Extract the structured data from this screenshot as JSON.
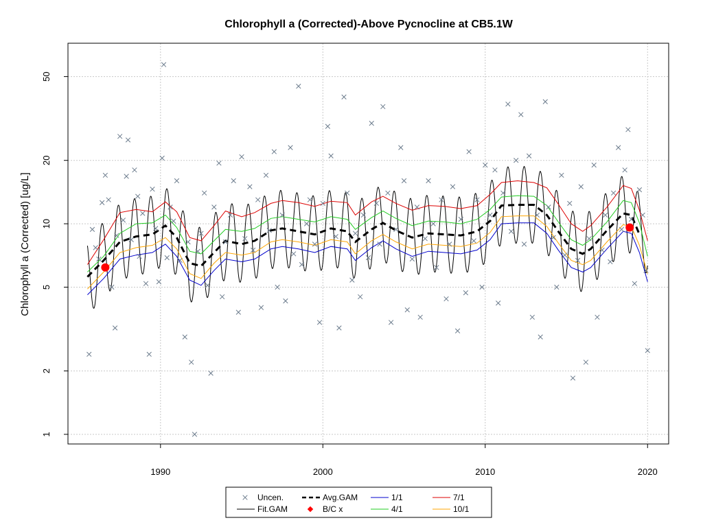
{
  "chart_data": {
    "type": "scatter",
    "title": "Chlorophyll a (Corrected)-Above Pycnocline at CB5.1W",
    "xlabel": "",
    "ylabel": "Chlorophyll a (Corrected) [ug/L]",
    "x_scale": "linear",
    "y_scale": "log",
    "xlim": [
      1984.3,
      2021.3
    ],
    "ylim": [
      0.9,
      72
    ],
    "x_ticks": [
      1990,
      2000,
      2010,
      2020
    ],
    "y_ticks": [
      1,
      2,
      5,
      10,
      20,
      50
    ],
    "x_tick_labels": [
      "1990",
      "2000",
      "2010",
      "2020"
    ],
    "y_tick_labels": [
      "1",
      "2",
      "5",
      "10",
      "20",
      "50"
    ],
    "grid": true,
    "legend_position": "bottom-center",
    "legend": [
      {
        "label": "Uncen.",
        "kind": "marker-x",
        "color": "#6b7b8c"
      },
      {
        "label": "Avg.GAM",
        "kind": "dashed-line",
        "color": "#000000"
      },
      {
        "label": "1/1",
        "kind": "line",
        "color": "#0000cc"
      },
      {
        "label": "7/1",
        "kind": "line",
        "color": "#dd0000"
      },
      {
        "label": "Fit.GAM",
        "kind": "line",
        "color": "#000000"
      },
      {
        "label": "B/C x",
        "kind": "marker-dot",
        "color": "#ff0000"
      },
      {
        "label": "4/1",
        "kind": "line",
        "color": "#22cc22"
      },
      {
        "label": "10/1",
        "kind": "line",
        "color": "#ffa500"
      }
    ],
    "series": [
      {
        "name": "Avg.GAM",
        "x": [
          1985.5,
          1986.5,
          1987.5,
          1988.5,
          1989.5,
          1990.3,
          1991,
          1991.8,
          1992.5,
          1993.3,
          1994,
          1995,
          1995.8,
          1996.8,
          1997.5,
          1998.5,
          1999.5,
          2000.5,
          2001.5,
          2002,
          2003,
          2003.7,
          2004.5,
          2005.5,
          2006.5,
          2007.5,
          2008.5,
          2009.5,
          2010.3,
          2011,
          2012,
          2013,
          2013.8,
          2014.5,
          2015.3,
          2016,
          2016.5,
          2017.5,
          2018.5,
          2019,
          2019.5
        ],
        "y": [
          5.6,
          6.7,
          8.2,
          8.7,
          8.9,
          9.8,
          8.6,
          6.5,
          6.3,
          7.3,
          8.3,
          8.0,
          8.3,
          9.3,
          9.5,
          9.2,
          8.9,
          9.5,
          9.2,
          8.2,
          9.4,
          10.1,
          9.3,
          8.6,
          9.0,
          8.9,
          8.8,
          9.2,
          10.3,
          12.2,
          12.3,
          12.3,
          11.0,
          9.2,
          7.6,
          7.2,
          7.6,
          9.3,
          11.2,
          11.0,
          8.9
        ]
      },
      {
        "name": "1/1",
        "x": [
          1985.5,
          1986.5,
          1987.5,
          1988.5,
          1989.5,
          1990.3,
          1991,
          1991.8,
          1992.5,
          1993.3,
          1994,
          1995,
          1995.8,
          1996.8,
          1997.5,
          1998.5,
          1999.5,
          2000.5,
          2001.5,
          2002,
          2003,
          2003.7,
          2004.5,
          2005.5,
          2006.5,
          2007.5,
          2008.5,
          2009.5,
          2010.3,
          2011,
          2012,
          2013,
          2013.8,
          2014.5,
          2015.3,
          2016,
          2016.5,
          2017.5,
          2018.5,
          2019,
          2019.5,
          2020
        ],
        "y": [
          4.6,
          5.5,
          6.8,
          7.1,
          7.3,
          8.0,
          7.0,
          5.4,
          5.1,
          6.0,
          6.8,
          6.6,
          6.8,
          7.6,
          7.8,
          7.6,
          7.3,
          7.8,
          7.6,
          6.7,
          7.7,
          8.3,
          7.6,
          7.0,
          7.4,
          7.3,
          7.2,
          7.5,
          8.4,
          10.0,
          10.1,
          10.1,
          9.0,
          7.5,
          6.2,
          5.9,
          6.2,
          7.6,
          9.2,
          9.0,
          7.3,
          5.3
        ]
      },
      {
        "name": "4/1",
        "x": [
          1985.5,
          1986.5,
          1987.5,
          1988.5,
          1989.5,
          1990.3,
          1991,
          1991.8,
          1992.5,
          1993.3,
          1994,
          1995,
          1995.8,
          1996.8,
          1997.5,
          1998.5,
          1999.5,
          2000.5,
          2001.5,
          2002,
          2003,
          2003.7,
          2004.5,
          2005.5,
          2006.5,
          2007.5,
          2008.5,
          2009.5,
          2010.3,
          2011,
          2012,
          2013,
          2013.8,
          2014.5,
          2015.3,
          2016,
          2016.5,
          2017.5,
          2018.5,
          2019,
          2019.5,
          2020
        ],
        "y": [
          5.9,
          7.0,
          9.0,
          10.0,
          10.1,
          11.0,
          9.6,
          7.4,
          7.2,
          8.3,
          9.4,
          9.2,
          9.5,
          10.6,
          10.8,
          10.5,
          10.2,
          10.8,
          10.5,
          9.4,
          10.7,
          11.5,
          10.6,
          9.8,
          10.3,
          10.2,
          10.0,
          10.5,
          11.7,
          13.4,
          13.6,
          13.5,
          12.2,
          10.2,
          8.4,
          7.9,
          8.4,
          10.2,
          12.9,
          12.6,
          10.1,
          7.0
        ]
      },
      {
        "name": "7/1",
        "x": [
          1985.5,
          1986.5,
          1987.5,
          1988.5,
          1989.5,
          1990.3,
          1991,
          1991.8,
          1992.5,
          1993.3,
          1994,
          1995,
          1995.8,
          1996.8,
          1997.5,
          1998.5,
          1999.5,
          2000.5,
          2001.5,
          2002,
          2003,
          2003.7,
          2004.5,
          2005.5,
          2006.5,
          2007.5,
          2008.5,
          2009.5,
          2010.3,
          2011,
          2012,
          2013,
          2013.8,
          2014.5,
          2015.3,
          2016,
          2016.5,
          2017.5,
          2018.5,
          2019,
          2019.5,
          2020
        ],
        "y": [
          6.4,
          8.4,
          11.3,
          11.7,
          11.4,
          12.7,
          11.4,
          8.6,
          8.3,
          9.8,
          11.5,
          10.8,
          11.3,
          12.5,
          12.9,
          12.6,
          12.1,
          12.8,
          12.6,
          11.0,
          12.7,
          13.5,
          12.5,
          11.6,
          12.2,
          12.1,
          11.8,
          12.2,
          13.8,
          15.7,
          16.0,
          15.7,
          14.8,
          12.4,
          10.0,
          9.2,
          9.8,
          12.0,
          15.2,
          14.7,
          11.6,
          8.3
        ]
      },
      {
        "name": "10/1",
        "x": [
          1985.5,
          1986.5,
          1987.5,
          1988.5,
          1989.5,
          1990.3,
          1991,
          1991.8,
          1992.5,
          1993.3,
          1994,
          1995,
          1995.8,
          1996.8,
          1997.5,
          1998.5,
          1999.5,
          2000.5,
          2001.5,
          2002,
          2003,
          2003.7,
          2004.5,
          2005.5,
          2006.5,
          2007.5,
          2008.5,
          2009.5,
          2010.3,
          2011,
          2012,
          2013,
          2013.8,
          2014.5,
          2015.3,
          2016,
          2016.5,
          2017.5,
          2018.5,
          2019,
          2019.5,
          2020
        ],
        "y": [
          4.9,
          5.9,
          7.3,
          7.7,
          7.9,
          8.6,
          7.6,
          5.8,
          5.5,
          6.5,
          7.3,
          7.1,
          7.3,
          8.2,
          8.4,
          8.2,
          7.9,
          8.4,
          8.2,
          7.2,
          8.3,
          8.9,
          8.2,
          7.6,
          8.0,
          7.9,
          7.8,
          8.1,
          9.1,
          10.8,
          10.9,
          10.9,
          9.7,
          8.1,
          6.7,
          6.4,
          6.7,
          8.2,
          9.9,
          9.7,
          7.9,
          5.8
        ]
      },
      {
        "name": "Fit.GAM",
        "seasonal_amplitude": 0.42,
        "period_years": 1,
        "follows": "Avg.GAM",
        "x": [
          1985.5,
          1990,
          1995,
          2000,
          2005,
          2010,
          2015,
          2020
        ]
      },
      {
        "name": "B/C x",
        "x": [
          1986.6,
          2018.9
        ],
        "y": [
          6.2,
          9.6
        ]
      },
      {
        "name": "Uncen.",
        "x": [
          1985.6,
          1985.8,
          1986.0,
          1986.2,
          1986.4,
          1986.6,
          1986.8,
          1987.0,
          1987.2,
          1987.3,
          1987.5,
          1987.7,
          1987.9,
          1988.0,
          1988.2,
          1988.4,
          1988.6,
          1988.7,
          1988.9,
          1989.1,
          1989.3,
          1989.5,
          1989.7,
          1989.9,
          1990.1,
          1990.2,
          1990.4,
          1990.6,
          1990.8,
          1991.0,
          1991.2,
          1991.5,
          1991.7,
          1991.9,
          1992.1,
          1992.3,
          1992.5,
          1992.7,
          1992.9,
          1993.1,
          1993.3,
          1993.6,
          1993.8,
          1994.0,
          1994.3,
          1994.5,
          1994.8,
          1995.0,
          1995.2,
          1995.5,
          1995.7,
          1996.0,
          1996.2,
          1996.5,
          1996.7,
          1997.0,
          1997.2,
          1997.5,
          1997.7,
          1998.0,
          1998.2,
          1998.5,
          1998.7,
          1999.0,
          1999.2,
          1999.5,
          1999.8,
          2000.0,
          2000.3,
          2000.5,
          2000.8,
          2001.0,
          2001.3,
          2001.5,
          2001.8,
          2002.0,
          2002.3,
          2002.5,
          2002.8,
          2003.0,
          2003.3,
          2003.5,
          2003.7,
          2004.0,
          2004.2,
          2004.5,
          2004.8,
          2005.0,
          2005.2,
          2005.5,
          2005.8,
          2006.0,
          2006.3,
          2006.5,
          2006.8,
          2007.0,
          2007.3,
          2007.6,
          2007.8,
          2008.0,
          2008.3,
          2008.5,
          2008.8,
          2009.0,
          2009.3,
          2009.5,
          2009.8,
          2010.0,
          2010.3,
          2010.6,
          2010.8,
          2011.1,
          2011.4,
          2011.6,
          2011.9,
          2012.2,
          2012.4,
          2012.7,
          2012.9,
          2013.2,
          2013.4,
          2013.7,
          2013.9,
          2014.2,
          2014.4,
          2014.7,
          2014.9,
          2015.2,
          2015.4,
          2015.7,
          2015.9,
          2016.2,
          2016.4,
          2016.7,
          2016.9,
          2017.2,
          2017.4,
          2017.7,
          2017.9,
          2018.2,
          2018.4,
          2018.6,
          2018.8,
          2019.0,
          2019.2,
          2019.5,
          2019.7,
          2019.9,
          2020.0
        ],
        "y": [
          2.4,
          9.4,
          7.7,
          6.8,
          12.6,
          17.0,
          13.0,
          5.0,
          3.2,
          8.8,
          26.0,
          10.4,
          16.8,
          25.0,
          8.4,
          18.0,
          13.5,
          7.0,
          11.2,
          5.2,
          2.4,
          14.6,
          9.5,
          5.3,
          20.5,
          57.0,
          6.9,
          12.0,
          10.3,
          16.0,
          6.7,
          2.9,
          8.2,
          2.2,
          1.0,
          7.4,
          9.0,
          14.0,
          5.1,
          1.95,
          12.0,
          19.4,
          4.5,
          8.2,
          11.0,
          16.0,
          3.8,
          20.8,
          8.5,
          15.0,
          7.5,
          13.0,
          4.0,
          17.0,
          9.3,
          22.0,
          5.0,
          11.0,
          4.3,
          23.0,
          7.2,
          45.0,
          6.4,
          10.0,
          13.0,
          8.0,
          3.4,
          12.5,
          29.0,
          21.0,
          8.7,
          3.2,
          40.0,
          14.0,
          5.4,
          9.0,
          4.5,
          11.0,
          6.9,
          30.0,
          12.5,
          8.0,
          36.0,
          14.0,
          3.4,
          9.4,
          23.0,
          16.0,
          3.9,
          6.8,
          12.0,
          3.6,
          8.5,
          16.0,
          10.0,
          6.2,
          13.0,
          4.4,
          8.0,
          15.0,
          3.1,
          10.5,
          4.7,
          22.0,
          8.3,
          13.0,
          5.0,
          19.0,
          11.0,
          18.0,
          4.2,
          14.0,
          37.0,
          9.2,
          20.0,
          33.0,
          8.0,
          21.0,
          3.6,
          11.0,
          2.9,
          38.0,
          12.0,
          8.6,
          5.0,
          17.0,
          7.1,
          12.5,
          1.85,
          6.7,
          15.0,
          2.2,
          8.5,
          19.0,
          3.6,
          7.5,
          11.0,
          6.6,
          14.0,
          23.0,
          9.4,
          18.0,
          28.0,
          10.5,
          5.2,
          14.5,
          11.0,
          6.0,
          2.5
        ]
      }
    ]
  }
}
